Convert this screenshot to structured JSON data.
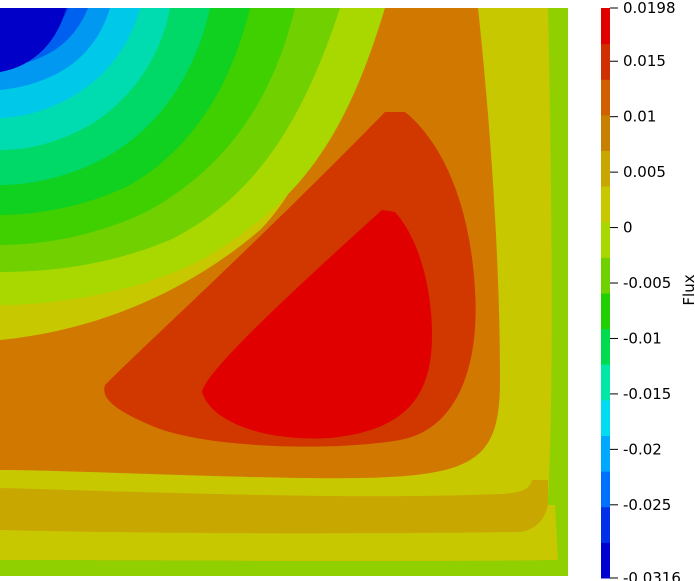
{
  "chart_data": {
    "type": "heatmap",
    "title": "",
    "xlabel": "",
    "ylabel": "",
    "colorbar": {
      "label": "Flux",
      "range": [
        -0.0316,
        0.0198
      ],
      "ticks": [
        {
          "value": 0.0198,
          "label": "0.0198"
        },
        {
          "value": 0.015,
          "label": "0.015"
        },
        {
          "value": 0.01,
          "label": "0.01"
        },
        {
          "value": 0.005,
          "label": "0.005"
        },
        {
          "value": 0,
          "label": "0"
        },
        {
          "value": -0.005,
          "label": "-0.005"
        },
        {
          "value": -0.01,
          "label": "-0.01"
        },
        {
          "value": -0.015,
          "label": "-0.015"
        },
        {
          "value": -0.02,
          "label": "-0.02"
        },
        {
          "value": -0.025,
          "label": "-0.025"
        },
        {
          "value": -0.0316,
          "label": "-0.0316"
        }
      ],
      "band_colors": [
        "#0000d0",
        "#0030e8",
        "#0070ff",
        "#00a8ff",
        "#00dcf0",
        "#00e8a8",
        "#00dc50",
        "#20d000",
        "#70d000",
        "#a8d800",
        "#c8c800",
        "#c8a800",
        "#c88000",
        "#d06000",
        "#d03000",
        "#e00000"
      ]
    },
    "field": {
      "description": "filled contour of Flux over a square domain",
      "minimum_location": "top-left",
      "maximum_location": "center-right",
      "min_value": -0.0316,
      "max_value": 0.0198
    }
  }
}
